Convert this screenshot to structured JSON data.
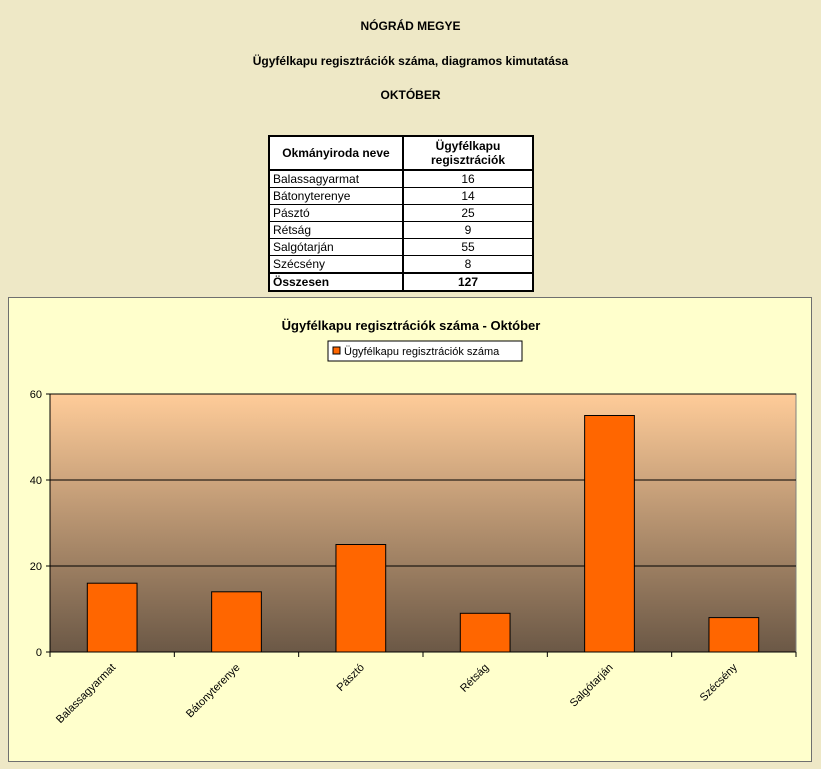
{
  "header": {
    "county": "NÓGRÁD MEGYE",
    "subtitle": "Ügyfélkapu regisztrációk száma, diagramos kimutatása",
    "month": "OKTÓBER"
  },
  "table": {
    "col_office": "Okmányiroda neve",
    "col_count_line1": "Ügyfélkapu",
    "col_count_line2": "regisztrációk",
    "rows": [
      {
        "name": "Balassagyarmat",
        "value": "16"
      },
      {
        "name": "Bátonyterenye",
        "value": "14"
      },
      {
        "name": "Pásztó",
        "value": "25"
      },
      {
        "name": "Rétság",
        "value": "9"
      },
      {
        "name": "Salgótarján",
        "value": "55"
      },
      {
        "name": "Szécsény",
        "value": "8"
      }
    ],
    "total_label": "Összesen",
    "total_value": "127"
  },
  "colors": {
    "bar": "#FF6600",
    "gradient_top": "#FFCC99",
    "gradient_bottom": "#6B5846",
    "panel": "#FFFFCC",
    "page": "#EEE8C6"
  },
  "chart_data": {
    "type": "bar",
    "title": "Ügyfélkapu regisztrációk száma - Október",
    "categories": [
      "Balassagyarmat",
      "Bátonyterenye",
      "Pásztó",
      "Rétság",
      "Salgótarján",
      "Szécsény"
    ],
    "series": [
      {
        "name": "Ügyfélkapu regisztrációk száma",
        "values": [
          16,
          14,
          25,
          9,
          55,
          8
        ]
      }
    ],
    "ylim": [
      0,
      60
    ],
    "yticks": [
      0,
      20,
      40,
      60
    ],
    "grid": true,
    "legend": "top-center",
    "xlabel": "",
    "ylabel": ""
  }
}
